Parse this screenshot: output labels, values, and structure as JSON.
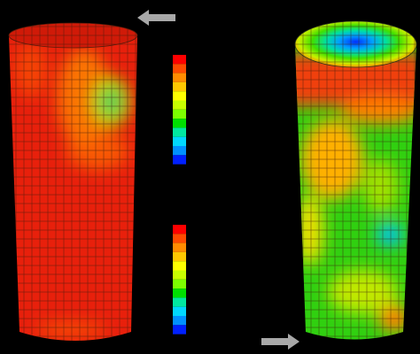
{
  "legends": [
    {
      "colors": [
        "#ff0000",
        "#ff4a00",
        "#ff8c00",
        "#ffc800",
        "#ffff00",
        "#c8ff00",
        "#7cff00",
        "#00e000",
        "#00e8a0",
        "#00d8ff",
        "#0090ff",
        "#0020ff"
      ]
    },
    {
      "colors": [
        "#ff0000",
        "#ff4a00",
        "#ff8c00",
        "#ffc800",
        "#ffff00",
        "#c8ff00",
        "#7cff00",
        "#00e000",
        "#00e8a0",
        "#00d8ff",
        "#0090ff",
        "#0020ff"
      ]
    }
  ]
}
